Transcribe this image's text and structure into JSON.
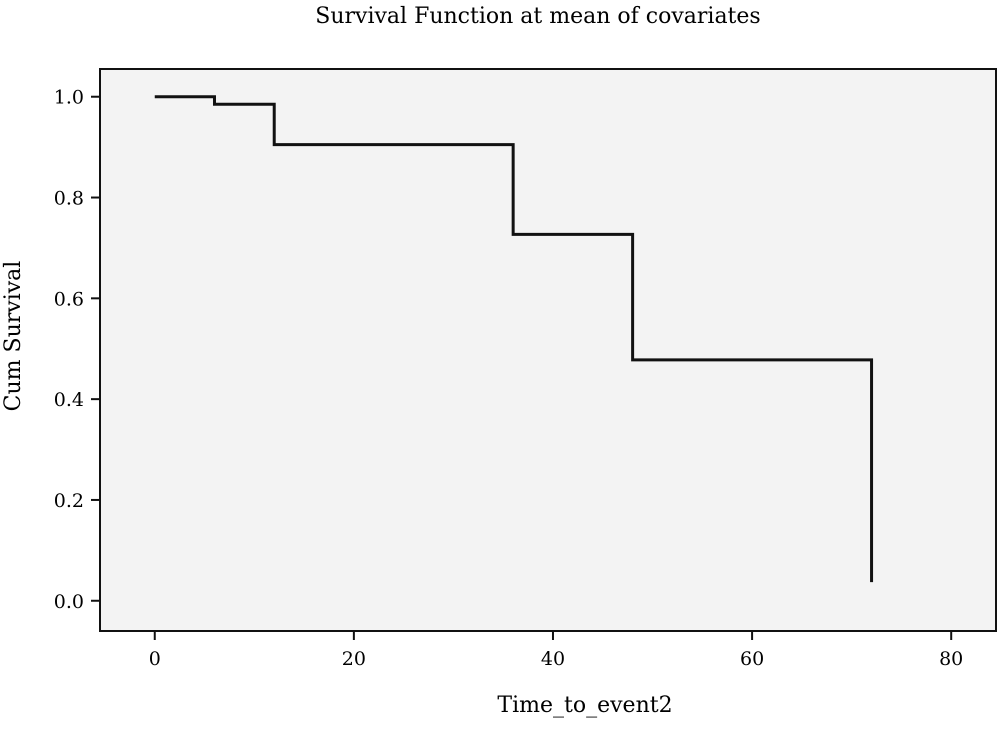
{
  "chart_data": {
    "type": "line",
    "title": "Survival Function at mean of covariates",
    "xlabel": "Time_to_event2",
    "ylabel": "Cum Survival",
    "xlim": [
      -5.5,
      84.5
    ],
    "ylim": [
      -0.06,
      1.055
    ],
    "x_ticks": [
      0,
      20,
      40,
      60,
      80
    ],
    "y_ticks": [
      0.0,
      0.2,
      0.4,
      0.6,
      0.8,
      1.0
    ],
    "x_tick_labels": [
      "0",
      "20",
      "40",
      "60",
      "80"
    ],
    "y_tick_labels": [
      "0.0",
      "0.2",
      "0.4",
      "0.6",
      "0.8",
      "1.0"
    ],
    "step": "post",
    "grid": false,
    "series": [
      {
        "x": [
          0,
          6,
          12,
          36,
          48,
          72,
          72
        ],
        "y": [
          1.0,
          0.985,
          0.905,
          0.727,
          0.478,
          0.478,
          0.037
        ]
      }
    ],
    "colors": {
      "plot_background": "#f3f3f3",
      "line": "#111111",
      "frame": "#111111"
    }
  }
}
